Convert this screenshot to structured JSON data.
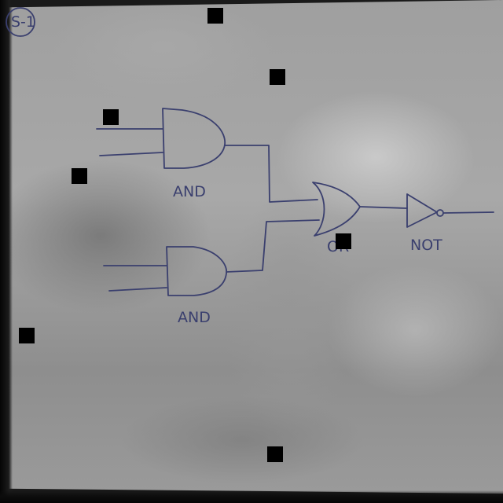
{
  "diagram": {
    "gates": [
      {
        "type": "AND",
        "label": "AND"
      },
      {
        "type": "AND",
        "label": "AND"
      },
      {
        "type": "OR",
        "label": "OR"
      },
      {
        "type": "NOT",
        "label": "NOT"
      }
    ],
    "corner_mark": "S-1",
    "ink_color": "#3a3f6e"
  }
}
